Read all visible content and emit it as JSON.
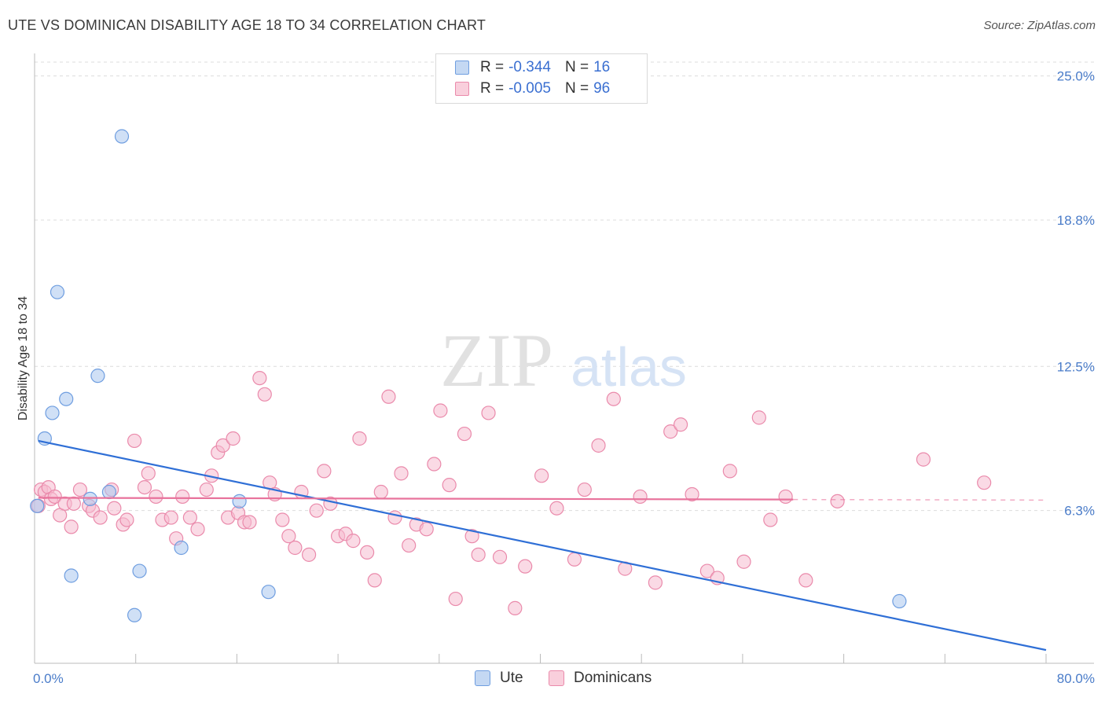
{
  "title": "UTE VS DOMINICAN DISABILITY AGE 18 TO 34 CORRELATION CHART",
  "source": "Source: ZipAtlas.com",
  "watermark": {
    "zip": "ZIP",
    "atlas": "atlas"
  },
  "legend_box": {
    "rows": [
      {
        "r_label": "R =",
        "r_value": "-0.344",
        "n_label": "N =",
        "n_value": "16",
        "color": "#a9c6ee",
        "border": "#6f9ee0"
      },
      {
        "r_label": "R =",
        "r_value": "-0.005",
        "n_label": "N =",
        "n_value": "96",
        "color": "#f6bcd0",
        "border": "#ea8aab"
      }
    ]
  },
  "bottom_legend": [
    {
      "label": "Ute",
      "color": "#c4d8f3",
      "border": "#6f9ee0"
    },
    {
      "label": "Dominicans",
      "color": "#f9cfdc",
      "border": "#ea8aab"
    }
  ],
  "chart_data": {
    "type": "scatter",
    "title": "UTE VS DOMINICAN DISABILITY AGE 18 TO 34 CORRELATION CHART",
    "xlabel": "",
    "ylabel": "Disability Age 18 to 34",
    "xlim": [
      0,
      80
    ],
    "ylim": [
      0,
      25.9
    ],
    "x_tick_labels": [
      "0.0%",
      "80.0%"
    ],
    "y_ticks": [
      {
        "value": 6.3,
        "label": "6.3%"
      },
      {
        "value": 12.5,
        "label": "12.5%"
      },
      {
        "value": 18.8,
        "label": "18.8%"
      },
      {
        "value": 25.0,
        "label": "25.0%"
      }
    ],
    "grid": true,
    "series": [
      {
        "name": "Ute",
        "color": "#a9c6ee",
        "stroke": "#6f9ee0",
        "points": [
          [
            0.2,
            6.5
          ],
          [
            0.8,
            9.4
          ],
          [
            1.4,
            10.5
          ],
          [
            1.8,
            15.7
          ],
          [
            2.5,
            11.1
          ],
          [
            2.9,
            3.5
          ],
          [
            5.0,
            12.1
          ],
          [
            4.4,
            6.8
          ],
          [
            5.9,
            7.1
          ],
          [
            6.9,
            22.4
          ],
          [
            7.9,
            1.8
          ],
          [
            8.3,
            3.7
          ],
          [
            11.6,
            4.7
          ],
          [
            16.2,
            6.7
          ],
          [
            18.5,
            2.8
          ],
          [
            68.4,
            2.4
          ]
        ],
        "trend": {
          "x0": 0.3,
          "y0": 9.3,
          "x1": 80.0,
          "y1": 0.3,
          "color": "#2f6fd6"
        }
      },
      {
        "name": "Dominicans",
        "color": "#f6bcd0",
        "stroke": "#ea8aab",
        "points": [
          [
            0.3,
            6.5
          ],
          [
            0.5,
            7.2
          ],
          [
            0.8,
            7.1
          ],
          [
            1.1,
            7.3
          ],
          [
            1.3,
            6.8
          ],
          [
            1.6,
            6.9
          ],
          [
            2.0,
            6.1
          ],
          [
            2.4,
            6.6
          ],
          [
            2.9,
            5.6
          ],
          [
            3.1,
            6.6
          ],
          [
            3.6,
            7.2
          ],
          [
            4.3,
            6.5
          ],
          [
            4.6,
            6.3
          ],
          [
            5.2,
            6.0
          ],
          [
            6.1,
            7.2
          ],
          [
            6.3,
            6.4
          ],
          [
            7.0,
            5.7
          ],
          [
            7.3,
            5.9
          ],
          [
            7.9,
            9.3
          ],
          [
            8.7,
            7.3
          ],
          [
            9.0,
            7.9
          ],
          [
            9.6,
            6.9
          ],
          [
            10.1,
            5.9
          ],
          [
            10.8,
            6.0
          ],
          [
            11.2,
            5.1
          ],
          [
            11.7,
            6.9
          ],
          [
            12.3,
            6.0
          ],
          [
            12.9,
            5.5
          ],
          [
            13.6,
            7.2
          ],
          [
            14.0,
            7.8
          ],
          [
            14.5,
            8.8
          ],
          [
            14.9,
            9.1
          ],
          [
            15.3,
            6.0
          ],
          [
            15.7,
            9.4
          ],
          [
            16.1,
            6.2
          ],
          [
            16.6,
            5.8
          ],
          [
            17.0,
            5.8
          ],
          [
            17.8,
            12.0
          ],
          [
            18.2,
            11.3
          ],
          [
            18.6,
            7.5
          ],
          [
            19.0,
            7.0
          ],
          [
            19.6,
            5.9
          ],
          [
            20.1,
            5.2
          ],
          [
            20.6,
            4.7
          ],
          [
            21.1,
            7.1
          ],
          [
            21.7,
            4.4
          ],
          [
            22.3,
            6.3
          ],
          [
            22.9,
            8.0
          ],
          [
            23.4,
            6.6
          ],
          [
            24.0,
            5.2
          ],
          [
            24.6,
            5.3
          ],
          [
            25.2,
            5.0
          ],
          [
            25.7,
            9.4
          ],
          [
            26.3,
            4.5
          ],
          [
            26.9,
            3.3
          ],
          [
            27.4,
            7.1
          ],
          [
            28.0,
            11.2
          ],
          [
            28.5,
            6.0
          ],
          [
            29.0,
            7.9
          ],
          [
            29.6,
            4.8
          ],
          [
            30.2,
            5.7
          ],
          [
            31.0,
            5.5
          ],
          [
            31.6,
            8.3
          ],
          [
            32.1,
            10.6
          ],
          [
            32.8,
            7.4
          ],
          [
            33.3,
            2.5
          ],
          [
            34.0,
            9.6
          ],
          [
            34.6,
            5.2
          ],
          [
            35.1,
            4.4
          ],
          [
            35.9,
            10.5
          ],
          [
            36.8,
            4.3
          ],
          [
            38.0,
            2.1
          ],
          [
            38.8,
            3.9
          ],
          [
            40.1,
            7.8
          ],
          [
            41.3,
            6.4
          ],
          [
            42.7,
            4.2
          ],
          [
            43.5,
            7.2
          ],
          [
            44.6,
            9.1
          ],
          [
            45.8,
            11.1
          ],
          [
            46.7,
            3.8
          ],
          [
            47.9,
            6.9
          ],
          [
            49.1,
            3.2
          ],
          [
            50.3,
            9.7
          ],
          [
            51.1,
            10.0
          ],
          [
            52.0,
            7.0
          ],
          [
            53.2,
            3.7
          ],
          [
            54.0,
            3.4
          ],
          [
            55.0,
            8.0
          ],
          [
            56.1,
            4.1
          ],
          [
            57.3,
            10.3
          ],
          [
            58.2,
            5.9
          ],
          [
            59.4,
            6.9
          ],
          [
            61.0,
            3.3
          ],
          [
            63.5,
            6.7
          ],
          [
            70.3,
            8.5
          ],
          [
            75.1,
            7.5
          ]
        ],
        "trend": {
          "x0": 0.3,
          "y0": 6.85,
          "x1": 80.0,
          "y1": 6.75,
          "solid_until": 60.0,
          "color": "#e8739c"
        }
      }
    ]
  }
}
